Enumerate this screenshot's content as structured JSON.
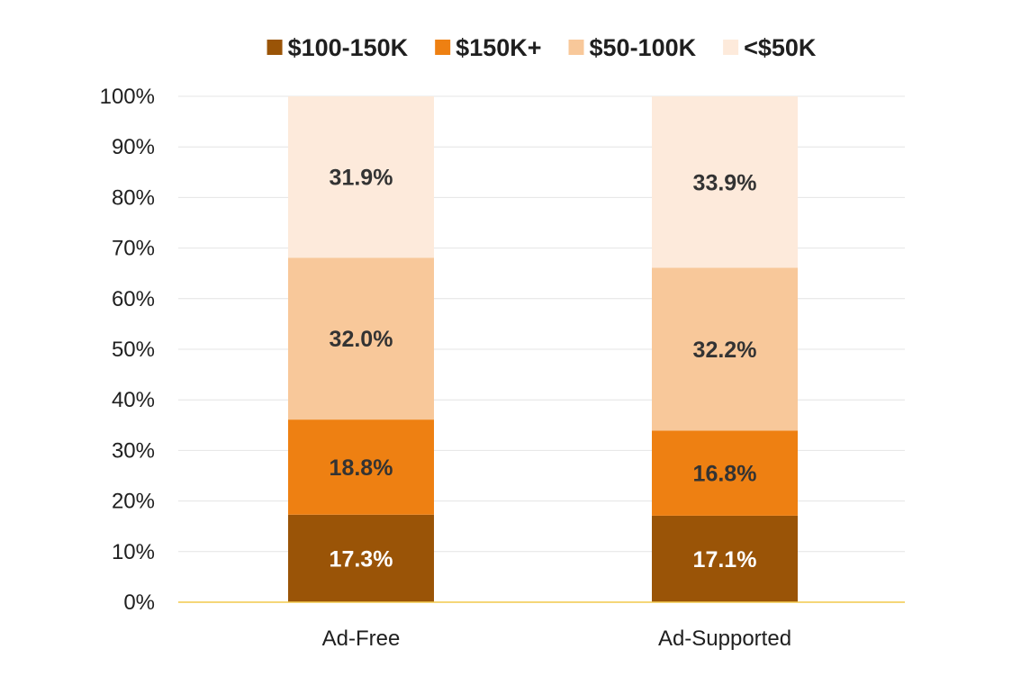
{
  "chart_data": {
    "type": "bar",
    "stacked": true,
    "categories": [
      "Ad-Free",
      "Ad-Supported"
    ],
    "series": [
      {
        "name": "$100-150K",
        "values": [
          17.3,
          17.1
        ],
        "labels": [
          "17.3%",
          "17.1%"
        ],
        "color": "#9a5407",
        "label_color": "#ffffff"
      },
      {
        "name": "$150K+",
        "values": [
          18.8,
          16.8
        ],
        "labels": [
          "18.8%",
          "16.8%"
        ],
        "color": "#ee8012",
        "label_color": "#333333"
      },
      {
        "name": "$50-100K",
        "values": [
          32.0,
          32.2
        ],
        "labels": [
          "32.0%",
          "32.2%"
        ],
        "color": "#f8c89a",
        "label_color": "#333333"
      },
      {
        "name": "<$50K",
        "values": [
          31.9,
          33.9
        ],
        "labels": [
          "31.9%",
          "33.9%"
        ],
        "color": "#fdeadb",
        "label_color": "#333333"
      }
    ],
    "yticks": [
      "0%",
      "10%",
      "20%",
      "30%",
      "40%",
      "50%",
      "60%",
      "70%",
      "80%",
      "90%",
      "100%"
    ],
    "ylim": [
      0,
      100
    ],
    "grid": true,
    "legend_position": "top",
    "gridline_color": "#e4e4e4",
    "baseline_color": "#f2c94c"
  }
}
